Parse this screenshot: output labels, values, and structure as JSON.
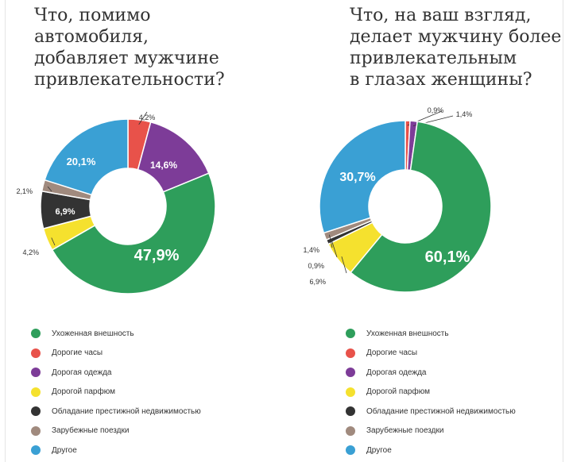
{
  "legend": [
    {
      "label": "Ухоженная внешность",
      "color": "#2e9e5b"
    },
    {
      "label": "Дорогие часы",
      "color": "#e8524a"
    },
    {
      "label": "Дорогая одежда",
      "color": "#7d3c98"
    },
    {
      "label": "Дорогой парфюм",
      "color": "#f5e12e"
    },
    {
      "label": "Обладание престижной недвижимостью",
      "color": "#333333"
    },
    {
      "label": "Зарубежные поездки",
      "color": "#a08a7e"
    },
    {
      "label": "Другое",
      "color": "#3aa0d4"
    }
  ],
  "chart_data": [
    {
      "type": "pie",
      "title": "Что, помимо\nавтомобиля,\nдобавляет мужчине\nпривлекательности?",
      "slices": [
        {
          "label": "Дорогие часы",
          "value": 4.2,
          "text": "4,2%",
          "color": "#e8524a"
        },
        {
          "label": "Дорогая одежда",
          "value": 14.6,
          "text": "14,6%",
          "color": "#7d3c98"
        },
        {
          "label": "Ухоженная внешность",
          "value": 47.9,
          "text": "47,9%",
          "color": "#2e9e5b"
        },
        {
          "label": "Дорогой парфюм",
          "value": 4.2,
          "text": "4,2%",
          "color": "#f5e12e"
        },
        {
          "label": "Обладание престижной недвижимостью",
          "value": 6.9,
          "text": "6,9%",
          "color": "#333333"
        },
        {
          "label": "Зарубежные поездки",
          "value": 2.1,
          "text": "2,1%",
          "color": "#a08a7e"
        },
        {
          "label": "Другое",
          "value": 20.1,
          "text": "20,1%",
          "color": "#3aa0d4"
        }
      ]
    },
    {
      "type": "pie",
      "title": "Что, на ваш взгляд,\nделает мужчину более\nпривлекательным\nв глазах женщины?",
      "slices": [
        {
          "label": "Дорогие часы",
          "value": 0.9,
          "text": "0,9%",
          "color": "#e8524a"
        },
        {
          "label": "Дорогая одежда",
          "value": 1.4,
          "text": "1,4%",
          "color": "#7d3c98"
        },
        {
          "label": "Ухоженная внешность",
          "value": 60.1,
          "text": "60,1%",
          "color": "#2e9e5b"
        },
        {
          "label": "Дорогой парфюм",
          "value": 6.9,
          "text": "6,9%",
          "color": "#f5e12e"
        },
        {
          "label": "Обладание престижной недвижимостью",
          "value": 0.9,
          "text": "0,9%",
          "color": "#333333"
        },
        {
          "label": "Зарубежные поездки",
          "value": 1.4,
          "text": "1,4%",
          "color": "#a08a7e"
        },
        {
          "label": "Другое",
          "value": 30.7,
          "text": "30,7%",
          "color": "#3aa0d4"
        }
      ]
    }
  ]
}
